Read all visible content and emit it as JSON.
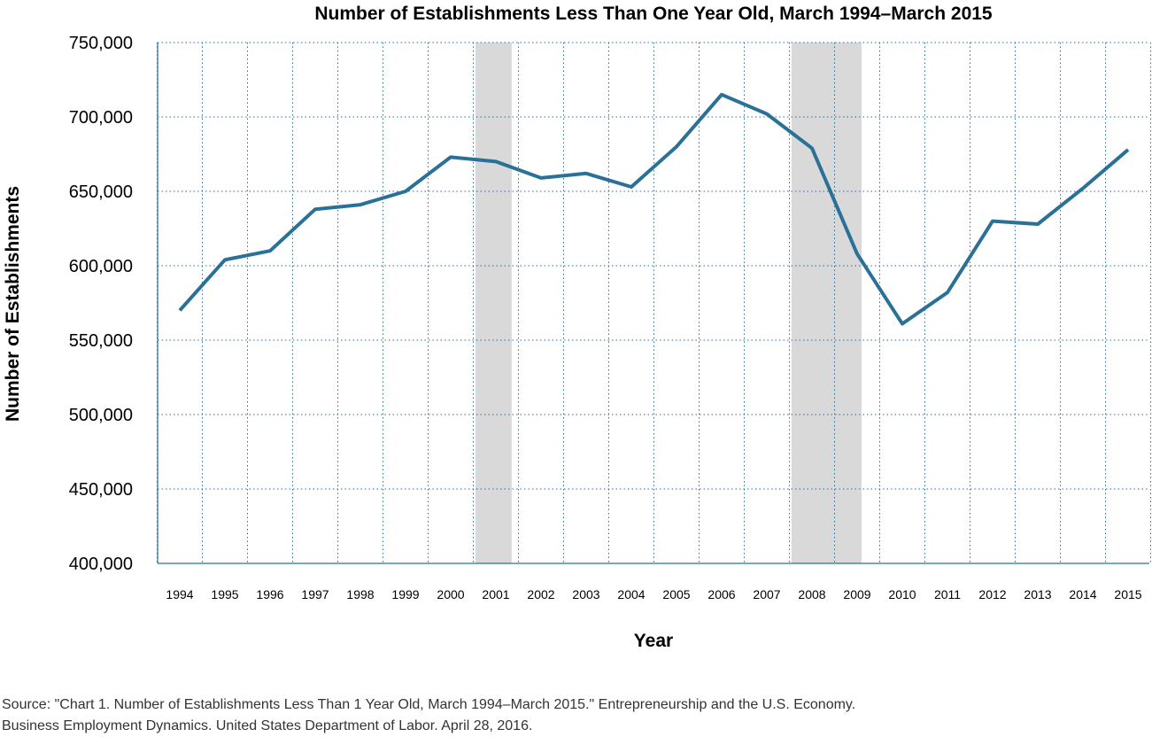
{
  "chart_data": {
    "type": "line",
    "title": "Number of Establishments Less Than One Year Old, March 1994–March 2015",
    "xlabel": "Year",
    "ylabel": "Number of Establishments",
    "x": [
      "1994",
      "1995",
      "1996",
      "1997",
      "1998",
      "1999",
      "2000",
      "2001",
      "2002",
      "2003",
      "2004",
      "2005",
      "2006",
      "2007",
      "2008",
      "2009",
      "2010",
      "2011",
      "2012",
      "2013",
      "2014",
      "2015"
    ],
    "series": [
      {
        "values": [
          570000,
          604000,
          610000,
          638000,
          641000,
          650000,
          673000,
          670000,
          659000,
          662000,
          653000,
          680000,
          715000,
          702000,
          679000,
          608000,
          561000,
          582000,
          630000,
          628000,
          652000,
          678000
        ],
        "color": "#2a7097"
      }
    ],
    "yticks": [
      "400,000",
      "450,000",
      "500,000",
      "550,000",
      "600,000",
      "650,000",
      "700,000",
      "750,000"
    ],
    "ytick_values": [
      400000,
      450000,
      500000,
      550000,
      600000,
      650000,
      700000,
      750000
    ],
    "ylim": [
      400000,
      750000
    ],
    "grid": true,
    "grid_style": "dotted",
    "recession_shading": [
      {
        "from": 2000.55,
        "to": 2001.35
      },
      {
        "from": 2007.55,
        "to": 2009.1
      }
    ],
    "shading_color": "#d9d9d9",
    "axis_color": "#2a7097"
  },
  "source_lines": [
    "Source: \"Chart 1. Number of Establishments Less Than 1 Year Old, March 1994–March 2015.\" Entrepreneurship and the U.S. Economy.",
    "Business Employment Dynamics. United States Department of Labor. April 28, 2016."
  ]
}
